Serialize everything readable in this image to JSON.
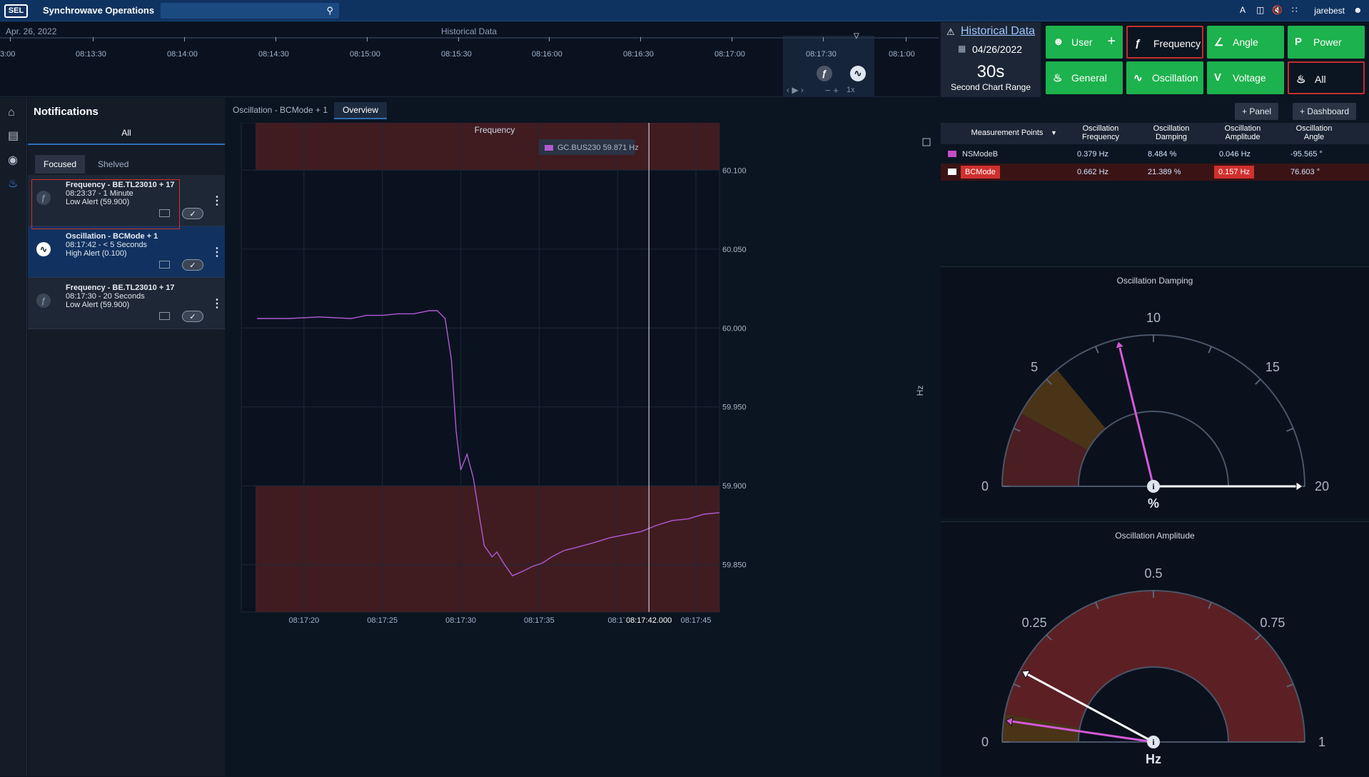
{
  "app": {
    "logo": "SEL",
    "title": "Synchrowave Operations",
    "user": "jarebest"
  },
  "timeline": {
    "date": "Apr. 26, 2022",
    "title": "Historical Data",
    "ticks": [
      "3:00",
      "08:13:30",
      "08:14:00",
      "08:14:30",
      "08:15:00",
      "08:15:30",
      "08:16:00",
      "08:16:30",
      "08:17:00",
      "08:17:30",
      "08:1:00"
    ],
    "zoom_label": "1x"
  },
  "historical": {
    "link": "Historical Data",
    "date": "04/26/2022",
    "range": "30s",
    "range_label": "Second Chart Range"
  },
  "categories": [
    {
      "label": "User",
      "icon": "user-icon",
      "state": "on"
    },
    {
      "label": "Frequency",
      "icon": "frequency-icon",
      "state": "off"
    },
    {
      "label": "Angle",
      "icon": "angle-icon",
      "state": "on"
    },
    {
      "label": "Power",
      "icon": "power-icon",
      "state": "on"
    },
    {
      "label": "General",
      "icon": "bell-icon",
      "state": "on"
    },
    {
      "label": "Oscillation",
      "icon": "oscillation-icon",
      "state": "on"
    },
    {
      "label": "Voltage",
      "icon": "voltage-icon",
      "state": "on"
    },
    {
      "label": "All",
      "icon": "bell-icon",
      "state": "off"
    }
  ],
  "notifications": {
    "title": "Notifications",
    "all_label": "All",
    "tabs": {
      "focused": "Focused",
      "shelved": "Shelved"
    },
    "items": [
      {
        "title": "Frequency - BE.TL23010 + 17",
        "time": "08:23:37 - 1 Minute",
        "detail": "Low Alert (59.900)"
      },
      {
        "title": "Oscillation - BCMode + 1",
        "time": "08:17:42 - < 5 Seconds",
        "detail": "High Alert (0.100)"
      },
      {
        "title": "Frequency - BE.TL23010 + 17",
        "time": "08:17:30 - 20 Seconds",
        "detail": "Low Alert (59.900)"
      }
    ]
  },
  "tabs": {
    "oscillation": "Oscillation - BCMode + 1",
    "overview": "Overview"
  },
  "header_buttons": {
    "panel": "Panel",
    "dashboard": "Dashboard"
  },
  "table": {
    "headers": [
      "Measurement Points",
      "Oscillation Frequency",
      "Oscillation Damping",
      "Oscillation Amplitude",
      "Oscillation Angle"
    ],
    "rows": [
      {
        "name": "NSModeB",
        "freq": "0.379 Hz",
        "damp": "8.484 %",
        "amp": "0.046 Hz",
        "angle": "-95.565 °",
        "color": "#c34ec9"
      },
      {
        "name": "BCMode",
        "freq": "0.662 Hz",
        "damp": "21.389 %",
        "amp": "0.157 Hz",
        "angle": "76.603 °",
        "color": "#ffffff"
      }
    ]
  },
  "gauges": {
    "damping": {
      "title": "Oscillation Damping",
      "unit": "%",
      "min": 0,
      "max": 20,
      "ticks": [
        "0",
        "5",
        "10",
        "15",
        "20"
      ],
      "values": {
        "NSModeB": 8.484,
        "BCMode": 21.389
      }
    },
    "amplitude": {
      "title": "Oscillation Amplitude",
      "unit": "Hz",
      "min": 0,
      "max": 1,
      "ticks": [
        "0",
        "0.25",
        "0.5",
        "0.75",
        "1"
      ],
      "values": {
        "NSModeB": 0.046,
        "BCMode": 0.157
      }
    }
  },
  "chart_data": {
    "type": "line",
    "title": "Frequency",
    "ylabel": "Hz",
    "legend": "GC.BUS230 59.871 Hz",
    "x_ticks": [
      "08:17:20",
      "08:17:25",
      "08:17:30",
      "08:17:35",
      "08:17",
      "08:17:45"
    ],
    "cursor_label": "08:17:42.000",
    "y_ticks": [
      "60.100",
      "60.050",
      "60.000",
      "59.950",
      "59.900",
      "59.850"
    ],
    "ylim": [
      59.82,
      60.13
    ],
    "series": [
      {
        "color": "#b05ad0",
        "x": [
          17.0,
          19.0,
          21.0,
          23.0,
          24.0,
          25.0,
          26.0,
          27.0,
          28.0,
          28.5,
          29.0,
          29.4,
          29.7,
          30.0,
          30.4,
          30.8,
          31.2,
          31.5,
          32.0,
          32.3,
          32.8,
          33.3,
          34.0,
          34.6,
          35.2,
          35.8,
          36.6,
          37.4,
          38.5,
          39.5,
          40.5,
          41.5,
          42.5,
          43.5,
          44.5,
          45.5,
          46.5
        ],
        "values": [
          60.006,
          60.006,
          60.007,
          60.006,
          60.008,
          60.008,
          60.009,
          60.009,
          60.011,
          60.011,
          60.006,
          59.98,
          59.935,
          59.91,
          59.92,
          59.905,
          59.88,
          59.862,
          59.855,
          59.858,
          59.85,
          59.843,
          59.846,
          59.849,
          59.851,
          59.855,
          59.859,
          59.861,
          59.864,
          59.867,
          59.869,
          59.871,
          59.875,
          59.878,
          59.879,
          59.882,
          59.883
        ]
      }
    ],
    "x_range": [
      16.0,
      46.5
    ],
    "cursor_x": 42.0,
    "alert_bands": [
      [
        60.1,
        60.13
      ],
      [
        59.82,
        59.9
      ]
    ]
  },
  "colors": {
    "alert": "#d0302e",
    "accent": "#2e6fb5",
    "green": "#1cb24d"
  }
}
